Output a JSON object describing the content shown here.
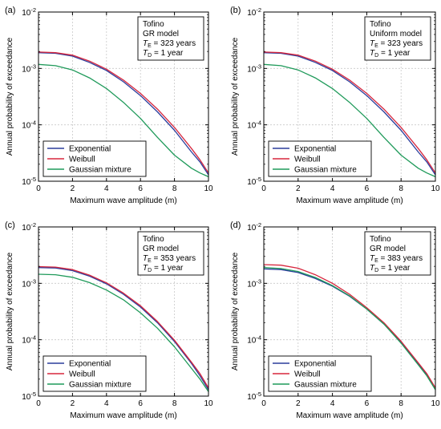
{
  "figure": {
    "chart_data": [
      {
        "type": "line",
        "panel_label": "(a)",
        "xlabel": "Maximum wave amplitude (m)",
        "ylabel": "Annual probability of exceedance",
        "xlim": [
          0,
          10
        ],
        "ylim": [
          1e-05,
          0.01
        ],
        "yscale": "log",
        "grid": true,
        "xticks": [
          "0",
          "2",
          "4",
          "6",
          "8",
          "10"
        ],
        "yticks": [
          {
            "base": "10",
            "exp": "-5"
          },
          {
            "base": "10",
            "exp": "-4"
          },
          {
            "base": "10",
            "exp": "-3"
          },
          {
            "base": "10",
            "exp": "-2"
          }
        ],
        "info_box": {
          "line1": "Tofino",
          "line2": "GR model",
          "line3": {
            "sym": "T",
            "sub": "E",
            "rest": " = 323 years"
          },
          "line4": {
            "sym": "T",
            "sub": "D",
            "rest": " = 1 year"
          }
        },
        "legend_position": "bottom-left",
        "series": [
          {
            "name": "Exponential",
            "color": "#2b3d9c",
            "x": [
              0,
              1,
              2,
              3,
              4,
              5,
              6,
              7,
              8,
              9,
              9.5,
              10
            ],
            "y": [
              0.0019,
              0.00185,
              0.00165,
              0.00128,
              0.00092,
              0.00058,
              0.00033,
              0.00017,
              8e-05,
              3.3e-05,
              2.2e-05,
              1.3e-05
            ]
          },
          {
            "name": "Weibull",
            "color": "#d7263d",
            "x": [
              0,
              1,
              2,
              3,
              4,
              5,
              6,
              7,
              8,
              9,
              9.5,
              10
            ],
            "y": [
              0.00195,
              0.0019,
              0.00172,
              0.00135,
              0.00097,
              0.00062,
              0.00036,
              0.00019,
              9e-05,
              3.8e-05,
              2.4e-05,
              1.4e-05
            ]
          },
          {
            "name": "Gaussian mixture",
            "color": "#1f9a5a",
            "x": [
              0,
              1,
              2,
              3,
              4,
              5,
              6,
              7,
              8,
              9,
              9.5,
              10
            ],
            "y": [
              0.00118,
              0.00112,
              0.00094,
              0.00068,
              0.00044,
              0.00025,
              0.00013,
              6e-05,
              2.9e-05,
              1.7e-05,
              1.4e-05,
              1.2e-05
            ]
          }
        ]
      },
      {
        "type": "line",
        "panel_label": "(b)",
        "xlabel": "Maximum wave amplitude (m)",
        "ylabel": "Annual probability of exceedance",
        "xlim": [
          0,
          10
        ],
        "ylim": [
          1e-05,
          0.01
        ],
        "yscale": "log",
        "grid": true,
        "xticks": [
          "0",
          "2",
          "4",
          "6",
          "8",
          "10"
        ],
        "yticks": [
          {
            "base": "10",
            "exp": "-5"
          },
          {
            "base": "10",
            "exp": "-4"
          },
          {
            "base": "10",
            "exp": "-3"
          },
          {
            "base": "10",
            "exp": "-2"
          }
        ],
        "info_box": {
          "line1": "Tofino",
          "line2": "Uniform model",
          "line3": {
            "sym": "T",
            "sub": "E",
            "rest": " = 323 years"
          },
          "line4": {
            "sym": "T",
            "sub": "D",
            "rest": " = 1 year"
          }
        },
        "legend_position": "bottom-left",
        "series": [
          {
            "name": "Exponential",
            "color": "#2b3d9c",
            "x": [
              0,
              1,
              2,
              3,
              4,
              5,
              6,
              7,
              8,
              9,
              9.5,
              10
            ],
            "y": [
              0.0019,
              0.00185,
              0.00165,
              0.00128,
              0.00092,
              0.00058,
              0.00033,
              0.00017,
              8e-05,
              3.3e-05,
              2.2e-05,
              1.3e-05
            ]
          },
          {
            "name": "Weibull",
            "color": "#d7263d",
            "x": [
              0,
              1,
              2,
              3,
              4,
              5,
              6,
              7,
              8,
              9,
              9.5,
              10
            ],
            "y": [
              0.00195,
              0.0019,
              0.00172,
              0.00135,
              0.00097,
              0.00062,
              0.00036,
              0.00019,
              9e-05,
              3.8e-05,
              2.4e-05,
              1.4e-05
            ]
          },
          {
            "name": "Gaussian mixture",
            "color": "#1f9a5a",
            "x": [
              0,
              1,
              2,
              3,
              4,
              5,
              6,
              7,
              8,
              9,
              9.5,
              10
            ],
            "y": [
              0.00118,
              0.00112,
              0.00094,
              0.00068,
              0.00044,
              0.00025,
              0.00013,
              6e-05,
              2.9e-05,
              1.7e-05,
              1.4e-05,
              1.2e-05
            ]
          }
        ]
      },
      {
        "type": "line",
        "panel_label": "(c)",
        "xlabel": "Maximum wave amplitude (m)",
        "ylabel": "Annual probability of exceedance",
        "xlim": [
          0,
          10
        ],
        "ylim": [
          1e-05,
          0.01
        ],
        "yscale": "log",
        "grid": true,
        "xticks": [
          "0",
          "2",
          "4",
          "6",
          "8",
          "10"
        ],
        "yticks": [
          {
            "base": "10",
            "exp": "-5"
          },
          {
            "base": "10",
            "exp": "-4"
          },
          {
            "base": "10",
            "exp": "-3"
          },
          {
            "base": "10",
            "exp": "-2"
          }
        ],
        "info_box": {
          "line1": "Tofino",
          "line2": "GR model",
          "line3": {
            "sym": "T",
            "sub": "E",
            "rest": " = 353 years"
          },
          "line4": {
            "sym": "T",
            "sub": "D",
            "rest": " = 1 year"
          }
        },
        "legend_position": "bottom-left",
        "series": [
          {
            "name": "Exponential",
            "color": "#2b3d9c",
            "x": [
              0,
              1,
              2,
              3,
              4,
              5,
              6,
              7,
              8,
              9,
              9.5,
              10
            ],
            "y": [
              0.0019,
              0.00187,
              0.00168,
              0.00134,
              0.00098,
              0.00064,
              0.00038,
              0.0002,
              9.3e-05,
              3.8e-05,
              2.3e-05,
              1.3e-05
            ]
          },
          {
            "name": "Weibull",
            "color": "#d7263d",
            "x": [
              0,
              1,
              2,
              3,
              4,
              5,
              6,
              7,
              8,
              9,
              9.5,
              10
            ],
            "y": [
              0.00198,
              0.00194,
              0.00175,
              0.0014,
              0.00102,
              0.00067,
              0.0004,
              0.00021,
              9.8e-05,
              4e-05,
              2.5e-05,
              1.4e-05
            ]
          },
          {
            "name": "Gaussian mixture",
            "color": "#1f9a5a",
            "x": [
              0,
              1,
              2,
              3,
              4,
              5,
              6,
              7,
              8,
              9,
              9.5,
              10
            ],
            "y": [
              0.00145,
              0.00142,
              0.00128,
              0.00103,
              0.00076,
              0.00051,
              0.0003,
              0.00016,
              7.5e-05,
              3.1e-05,
              2e-05,
              1.2e-05
            ]
          }
        ]
      },
      {
        "type": "line",
        "panel_label": "(d)",
        "xlabel": "Maximum wave amplitude (m)",
        "ylabel": "Annual probability of exceedance",
        "xlim": [
          0,
          10
        ],
        "ylim": [
          1e-05,
          0.01
        ],
        "yscale": "log",
        "grid": true,
        "xticks": [
          "0",
          "2",
          "4",
          "6",
          "8",
          "10"
        ],
        "yticks": [
          {
            "base": "10",
            "exp": "-5"
          },
          {
            "base": "10",
            "exp": "-4"
          },
          {
            "base": "10",
            "exp": "-3"
          },
          {
            "base": "10",
            "exp": "-2"
          }
        ],
        "info_box": {
          "line1": "Tofino",
          "line2": "GR model",
          "line3": {
            "sym": "T",
            "sub": "E",
            "rest": " = 383 years"
          },
          "line4": {
            "sym": "T",
            "sub": "D",
            "rest": " = 1 year"
          }
        },
        "legend_position": "bottom-left",
        "series": [
          {
            "name": "Exponential",
            "color": "#2b3d9c",
            "x": [
              0,
              1,
              2,
              3,
              4,
              5,
              6,
              7,
              8,
              9,
              9.5,
              10
            ],
            "y": [
              0.0018,
              0.00175,
              0.00155,
              0.00122,
              0.00089,
              0.00059,
              0.00035,
              0.00019,
              9e-05,
              3.8e-05,
              2.4e-05,
              1.4e-05
            ]
          },
          {
            "name": "Weibull",
            "color": "#d7263d",
            "x": [
              0,
              1,
              2,
              3,
              4,
              5,
              6,
              7,
              8,
              9,
              9.5,
              10
            ],
            "y": [
              0.00215,
              0.0021,
              0.00185,
              0.00142,
              0.001,
              0.00064,
              0.00037,
              0.0002,
              9.4e-05,
              3.9e-05,
              2.5e-05,
              1.4e-05
            ]
          },
          {
            "name": "Gaussian mixture",
            "color": "#1f9a5a",
            "x": [
              0,
              1,
              2,
              3,
              4,
              5,
              6,
              7,
              8,
              9,
              9.5,
              10
            ],
            "y": [
              0.0019,
              0.00183,
              0.00162,
              0.00127,
              0.00091,
              0.0006,
              0.00035,
              0.00019,
              8.7e-05,
              3.6e-05,
              2.3e-05,
              1.3e-05
            ]
          }
        ]
      }
    ]
  }
}
